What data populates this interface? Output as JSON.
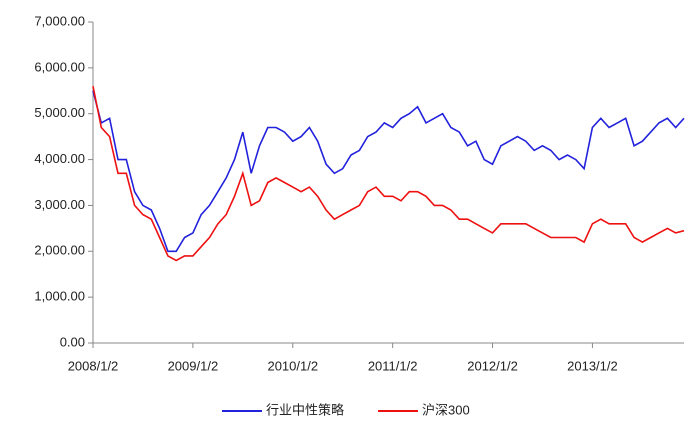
{
  "chart_data": {
    "type": "line",
    "x": [
      "2008/1/2",
      "2008/2/2",
      "2008/3/2",
      "2008/4/2",
      "2008/5/2",
      "2008/6/2",
      "2008/7/2",
      "2008/8/2",
      "2008/9/2",
      "2008/10/2",
      "2008/11/2",
      "2008/12/2",
      "2009/1/2",
      "2009/2/2",
      "2009/3/2",
      "2009/4/2",
      "2009/5/2",
      "2009/6/2",
      "2009/7/2",
      "2009/8/2",
      "2009/9/2",
      "2009/10/2",
      "2009/11/2",
      "2009/12/2",
      "2010/1/2",
      "2010/2/2",
      "2010/3/2",
      "2010/4/2",
      "2010/5/2",
      "2010/6/2",
      "2010/7/2",
      "2010/8/2",
      "2010/9/2",
      "2010/10/2",
      "2010/11/2",
      "2010/12/2",
      "2011/1/2",
      "2011/2/2",
      "2011/3/2",
      "2011/4/2",
      "2011/5/2",
      "2011/6/2",
      "2011/7/2",
      "2011/8/2",
      "2011/9/2",
      "2011/10/2",
      "2011/11/2",
      "2011/12/2",
      "2012/1/2",
      "2012/2/2",
      "2012/3/2",
      "2012/4/2",
      "2012/5/2",
      "2012/6/2",
      "2012/7/2",
      "2012/8/2",
      "2012/9/2",
      "2012/10/2",
      "2012/11/2",
      "2012/12/2",
      "2013/1/2",
      "2013/2/2",
      "2013/3/2",
      "2013/4/2",
      "2013/5/2",
      "2013/6/2",
      "2013/7/2",
      "2013/8/2",
      "2013/9/2",
      "2013/10/2",
      "2013/11/2",
      "2013/12/2"
    ],
    "series": [
      {
        "name": "行业中性策略",
        "color": "#2222dd",
        "values": [
          5500,
          4800,
          4900,
          4000,
          4000,
          3300,
          3000,
          2900,
          2500,
          2000,
          2000,
          2300,
          2400,
          2800,
          3000,
          3300,
          3600,
          4000,
          4600,
          3700,
          4300,
          4700,
          4700,
          4600,
          4400,
          4500,
          4700,
          4400,
          3900,
          3700,
          3800,
          4100,
          4200,
          4500,
          4600,
          4800,
          4700,
          4900,
          5000,
          5150,
          4800,
          4900,
          5000,
          4700,
          4600,
          4300,
          4400,
          4000,
          3900,
          4300,
          4400,
          4500,
          4400,
          4200,
          4300,
          4200,
          4000,
          4100,
          4000,
          3800,
          4700,
          4900,
          4700,
          4800,
          4900,
          4300,
          4400,
          4600,
          4800,
          4900,
          4700,
          4900
        ]
      },
      {
        "name": "沪深300",
        "color": "#ee1111",
        "values": [
          5600,
          4700,
          4500,
          3700,
          3700,
          3000,
          2800,
          2700,
          2300,
          1900,
          1800,
          1900,
          1900,
          2100,
          2300,
          2600,
          2800,
          3200,
          3700,
          3000,
          3100,
          3500,
          3600,
          3500,
          3400,
          3300,
          3400,
          3200,
          2900,
          2700,
          2800,
          2900,
          3000,
          3300,
          3400,
          3200,
          3200,
          3100,
          3300,
          3300,
          3200,
          3000,
          3000,
          2900,
          2700,
          2700,
          2600,
          2500,
          2400,
          2600,
          2600,
          2600,
          2600,
          2500,
          2400,
          2300,
          2300,
          2300,
          2300,
          2200,
          2600,
          2700,
          2600,
          2600,
          2600,
          2300,
          2200,
          2300,
          2400,
          2500,
          2400,
          2450
        ]
      }
    ],
    "ylim": [
      0,
      7000
    ],
    "yticks": [
      {
        "value": 0,
        "label": "0.00"
      },
      {
        "value": 1000,
        "label": "1,000.00"
      },
      {
        "value": 2000,
        "label": "2,000.00"
      },
      {
        "value": 3000,
        "label": "3,000.00"
      },
      {
        "value": 4000,
        "label": "4,000.00"
      },
      {
        "value": 5000,
        "label": "5,000.00"
      },
      {
        "value": 6000,
        "label": "6,000.00"
      },
      {
        "value": 7000,
        "label": "7,000.00"
      }
    ],
    "grid": false,
    "legend": "bottom"
  }
}
